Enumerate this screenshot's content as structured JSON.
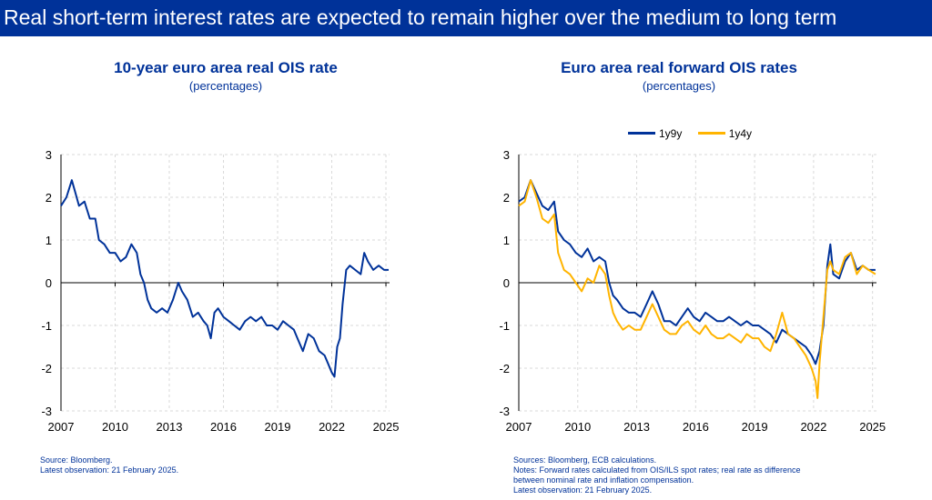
{
  "header": {
    "title": "Real short-term interest rates are expected to remain higher over the medium to long term"
  },
  "colors": {
    "banner": "#003299",
    "title": "#003299",
    "series_blue": "#003299",
    "series_yellow": "#FFB400"
  },
  "charts": {
    "left": {
      "title": "10-year euro area real OIS rate",
      "subtitle": "(percentages)",
      "footnotes": [
        "Source: Bloomberg.",
        "Latest observation: 21 February 2025."
      ]
    },
    "right": {
      "title": "Euro area real forward OIS rates",
      "subtitle": "(percentages)",
      "legend": [
        "1y9y",
        "1y4y"
      ],
      "footnotes": [
        "Sources: Bloomberg, ECB calculations.",
        "Notes: Forward rates calculated from OIS/ILS spot rates; real rate as difference",
        "between nominal rate and inflation compensation.",
        "Latest observation: 21 February 2025."
      ]
    }
  },
  "chart_data": [
    {
      "type": "line",
      "title": "10-year euro area real OIS rate",
      "ylabel": "(percentages)",
      "ylim": [
        -3,
        3
      ],
      "xlim": [
        2007,
        2025.2
      ],
      "xticks": [
        "2007",
        "2010",
        "2013",
        "2016",
        "2019",
        "2022",
        "2025"
      ],
      "yticks": [
        "3",
        "2",
        "1",
        "0",
        "-1",
        "-2",
        "-3"
      ],
      "grid": true,
      "series": [
        {
          "color": "#003299",
          "x": [
            2007.0,
            2007.3,
            2007.6,
            2007.8,
            2008.0,
            2008.3,
            2008.6,
            2008.9,
            2009.1,
            2009.4,
            2009.7,
            2010.0,
            2010.3,
            2010.6,
            2010.9,
            2011.2,
            2011.4,
            2011.6,
            2011.8,
            2012.0,
            2012.3,
            2012.6,
            2012.9,
            2013.2,
            2013.5,
            2013.7,
            2014.0,
            2014.3,
            2014.6,
            2014.9,
            2015.1,
            2015.3,
            2015.5,
            2015.7,
            2016.0,
            2016.3,
            2016.6,
            2016.9,
            2017.2,
            2017.5,
            2017.8,
            2018.1,
            2018.4,
            2018.7,
            2019.0,
            2019.3,
            2019.6,
            2019.9,
            2020.1,
            2020.4,
            2020.7,
            2021.0,
            2021.3,
            2021.6,
            2021.8,
            2022.0,
            2022.15,
            2022.3,
            2022.45,
            2022.6,
            2022.8,
            2023.0,
            2023.3,
            2023.6,
            2023.8,
            2024.0,
            2024.3,
            2024.6,
            2024.9,
            2025.15
          ],
          "values": [
            1.8,
            2.0,
            2.4,
            2.1,
            1.8,
            1.9,
            1.5,
            1.5,
            1.0,
            0.9,
            0.7,
            0.7,
            0.5,
            0.6,
            0.9,
            0.7,
            0.2,
            0.0,
            -0.4,
            -0.6,
            -0.7,
            -0.6,
            -0.7,
            -0.4,
            0.0,
            -0.2,
            -0.4,
            -0.8,
            -0.7,
            -0.9,
            -1.0,
            -1.3,
            -0.7,
            -0.6,
            -0.8,
            -0.9,
            -1.0,
            -1.1,
            -0.9,
            -0.8,
            -0.9,
            -0.8,
            -1.0,
            -1.0,
            -1.1,
            -0.9,
            -1.0,
            -1.1,
            -1.3,
            -1.6,
            -1.2,
            -1.3,
            -1.6,
            -1.7,
            -1.9,
            -2.1,
            -2.2,
            -1.5,
            -1.3,
            -0.5,
            0.3,
            0.4,
            0.3,
            0.2,
            0.7,
            0.5,
            0.3,
            0.4,
            0.3,
            0.3
          ]
        }
      ]
    },
    {
      "type": "line",
      "title": "Euro area real forward OIS rates",
      "ylabel": "(percentages)",
      "ylim": [
        -3,
        3
      ],
      "xlim": [
        2007,
        2025.2
      ],
      "xticks": [
        "2007",
        "2010",
        "2013",
        "2016",
        "2019",
        "2022",
        "2025"
      ],
      "yticks": [
        "3",
        "2",
        "1",
        "0",
        "-1",
        "-2",
        "-3"
      ],
      "grid": true,
      "legend_position": "top",
      "series": [
        {
          "name": "1y9y",
          "color": "#003299",
          "x": [
            2007.0,
            2007.3,
            2007.6,
            2007.9,
            2008.2,
            2008.5,
            2008.8,
            2009.0,
            2009.3,
            2009.6,
            2009.9,
            2010.2,
            2010.5,
            2010.8,
            2011.1,
            2011.4,
            2011.6,
            2011.8,
            2012.0,
            2012.3,
            2012.6,
            2012.9,
            2013.2,
            2013.5,
            2013.8,
            2014.1,
            2014.4,
            2014.7,
            2015.0,
            2015.3,
            2015.6,
            2015.9,
            2016.2,
            2016.5,
            2016.8,
            2017.1,
            2017.4,
            2017.7,
            2018.0,
            2018.3,
            2018.6,
            2018.9,
            2019.2,
            2019.5,
            2019.8,
            2020.1,
            2020.4,
            2020.7,
            2021.0,
            2021.3,
            2021.6,
            2021.9,
            2022.1,
            2022.3,
            2022.5,
            2022.7,
            2022.85,
            2023.0,
            2023.3,
            2023.6,
            2023.9,
            2024.2,
            2024.5,
            2024.8,
            2025.15
          ],
          "values": [
            1.9,
            2.0,
            2.4,
            2.1,
            1.8,
            1.7,
            1.9,
            1.2,
            1.0,
            0.9,
            0.7,
            0.6,
            0.8,
            0.5,
            0.6,
            0.5,
            0.0,
            -0.3,
            -0.4,
            -0.6,
            -0.7,
            -0.7,
            -0.8,
            -0.5,
            -0.2,
            -0.5,
            -0.9,
            -0.9,
            -1.0,
            -0.8,
            -0.6,
            -0.8,
            -0.9,
            -0.7,
            -0.8,
            -0.9,
            -0.9,
            -0.8,
            -0.9,
            -1.0,
            -0.9,
            -1.0,
            -1.0,
            -1.1,
            -1.2,
            -1.4,
            -1.1,
            -1.2,
            -1.3,
            -1.4,
            -1.5,
            -1.7,
            -1.9,
            -1.6,
            -1.0,
            0.4,
            0.9,
            0.2,
            0.1,
            0.5,
            0.7,
            0.3,
            0.4,
            0.3,
            0.3
          ]
        },
        {
          "name": "1y4y",
          "color": "#FFB400",
          "x": [
            2007.0,
            2007.3,
            2007.6,
            2007.9,
            2008.2,
            2008.5,
            2008.8,
            2009.0,
            2009.3,
            2009.6,
            2009.9,
            2010.2,
            2010.5,
            2010.8,
            2011.1,
            2011.4,
            2011.6,
            2011.8,
            2012.0,
            2012.3,
            2012.6,
            2012.9,
            2013.2,
            2013.5,
            2013.8,
            2014.1,
            2014.4,
            2014.7,
            2015.0,
            2015.3,
            2015.6,
            2015.9,
            2016.2,
            2016.5,
            2016.8,
            2017.1,
            2017.4,
            2017.7,
            2018.0,
            2018.3,
            2018.6,
            2018.9,
            2019.2,
            2019.5,
            2019.8,
            2020.1,
            2020.4,
            2020.7,
            2021.0,
            2021.3,
            2021.6,
            2021.9,
            2022.1,
            2022.2,
            2022.3,
            2022.5,
            2022.7,
            2022.85,
            2023.0,
            2023.3,
            2023.6,
            2023.9,
            2024.2,
            2024.5,
            2024.8,
            2025.15
          ],
          "values": [
            1.8,
            1.9,
            2.4,
            2.0,
            1.5,
            1.4,
            1.6,
            0.7,
            0.3,
            0.2,
            0.0,
            -0.2,
            0.1,
            0.0,
            0.4,
            0.2,
            -0.3,
            -0.7,
            -0.9,
            -1.1,
            -1.0,
            -1.1,
            -1.1,
            -0.8,
            -0.5,
            -0.8,
            -1.1,
            -1.2,
            -1.2,
            -1.0,
            -0.9,
            -1.1,
            -1.2,
            -1.0,
            -1.2,
            -1.3,
            -1.3,
            -1.2,
            -1.3,
            -1.4,
            -1.2,
            -1.3,
            -1.3,
            -1.5,
            -1.6,
            -1.2,
            -0.7,
            -1.2,
            -1.3,
            -1.5,
            -1.7,
            -2.0,
            -2.3,
            -2.7,
            -1.9,
            -0.8,
            0.3,
            0.5,
            0.3,
            0.2,
            0.6,
            0.7,
            0.2,
            0.4,
            0.3,
            0.2
          ]
        }
      ]
    }
  ]
}
